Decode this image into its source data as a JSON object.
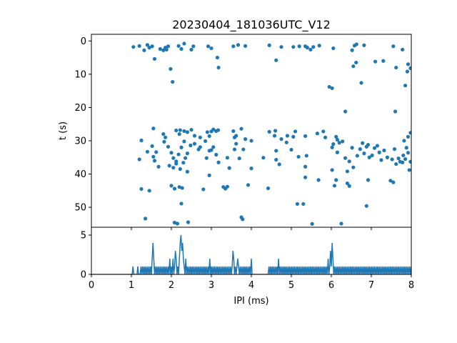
{
  "chart_data": [
    {
      "type": "scatter",
      "title": "20230404_181036UTC_V12",
      "xlabel": "",
      "ylabel": "t (s)",
      "xlim": [
        0,
        8
      ],
      "ylim": [
        56,
        -2
      ],
      "y_inverted": true,
      "x_ticks": [
        0,
        1,
        2,
        3,
        4,
        5,
        6,
        7,
        8
      ],
      "y_ticks": [
        0,
        10,
        20,
        30,
        40,
        50
      ],
      "marker_color": "#1f77b4",
      "grid": false,
      "points": [
        [
          1.05,
          1.8
        ],
        [
          1.2,
          1.5
        ],
        [
          1.32,
          2.8
        ],
        [
          1.4,
          1.2
        ],
        [
          1.45,
          2.0
        ],
        [
          1.52,
          1.6
        ],
        [
          1.58,
          5.4
        ],
        [
          1.72,
          2.4
        ],
        [
          1.8,
          2.8
        ],
        [
          1.85,
          2.0
        ],
        [
          1.88,
          2.6
        ],
        [
          1.92,
          1.6
        ],
        [
          1.98,
          8.4
        ],
        [
          2.03,
          12.3
        ],
        [
          2.18,
          1.5
        ],
        [
          2.25,
          2.4
        ],
        [
          2.32,
          0.8
        ],
        [
          2.5,
          2.6
        ],
        [
          2.55,
          1.6
        ],
        [
          2.92,
          1.6
        ],
        [
          3.0,
          2.2
        ],
        [
          3.15,
          5.0
        ],
        [
          3.18,
          8.0
        ],
        [
          3.55,
          1.6
        ],
        [
          3.67,
          1.2
        ],
        [
          3.85,
          1.5
        ],
        [
          4.45,
          1.3
        ],
        [
          4.62,
          5.8
        ],
        [
          4.75,
          1.8
        ],
        [
          5.05,
          1.8
        ],
        [
          5.2,
          1.6
        ],
        [
          5.35,
          1.6
        ],
        [
          5.4,
          2.0
        ],
        [
          5.48,
          2.6
        ],
        [
          5.55,
          1.8
        ],
        [
          5.7,
          1.4
        ],
        [
          6.05,
          2.2
        ],
        [
          6.52,
          2.8
        ],
        [
          6.58,
          1.4
        ],
        [
          6.63,
          1.0
        ],
        [
          6.55,
          7.6
        ],
        [
          6.62,
          6.5
        ],
        [
          6.75,
          12.6
        ],
        [
          6.82,
          1.3
        ],
        [
          7.1,
          6.2
        ],
        [
          7.3,
          6.0
        ],
        [
          7.55,
          1.6
        ],
        [
          7.62,
          8.0
        ],
        [
          7.78,
          2.6
        ],
        [
          7.85,
          13.4
        ],
        [
          7.9,
          9.2
        ],
        [
          7.92,
          7.0
        ],
        [
          7.98,
          8.2
        ],
        [
          5.95,
          13.8
        ],
        [
          6.02,
          14.2
        ],
        [
          6.35,
          21.2
        ],
        [
          7.6,
          21.2
        ],
        [
          1.55,
          26.3
        ],
        [
          1.8,
          28.0
        ],
        [
          1.85,
          29.0
        ],
        [
          2.12,
          26.9
        ],
        [
          2.2,
          28.0
        ],
        [
          2.22,
          26.8
        ],
        [
          2.32,
          27.1
        ],
        [
          2.4,
          27.4
        ],
        [
          2.5,
          26.7
        ],
        [
          2.58,
          28.5
        ],
        [
          2.72,
          29.0
        ],
        [
          2.9,
          27.4
        ],
        [
          2.95,
          28.6
        ],
        [
          3.0,
          27.2
        ],
        [
          3.05,
          26.6
        ],
        [
          3.12,
          27.1
        ],
        [
          3.17,
          26.8
        ],
        [
          3.55,
          27.1
        ],
        [
          3.58,
          29.0
        ],
        [
          3.62,
          28.5
        ],
        [
          3.75,
          26.4
        ],
        [
          3.85,
          29.5
        ],
        [
          4.0,
          30.0
        ],
        [
          4.45,
          27.3
        ],
        [
          4.58,
          28.5
        ],
        [
          4.6,
          27.0
        ],
        [
          4.75,
          29.5
        ],
        [
          4.9,
          28.5
        ],
        [
          5.1,
          27.2
        ],
        [
          5.35,
          28.6
        ],
        [
          5.65,
          27.8
        ],
        [
          5.8,
          27.2
        ],
        [
          5.85,
          29.0
        ],
        [
          6.05,
          31.0
        ],
        [
          6.12,
          28.8
        ],
        [
          6.15,
          29.7
        ],
        [
          6.2,
          30.6
        ],
        [
          7.92,
          28.8
        ],
        [
          7.98,
          27.6
        ],
        [
          1.25,
          29.9
        ],
        [
          1.4,
          33.3
        ],
        [
          1.2,
          35.6
        ],
        [
          1.52,
          31.6
        ],
        [
          1.55,
          34.8
        ],
        [
          1.58,
          36.0
        ],
        [
          1.62,
          33.4
        ],
        [
          1.68,
          37.8
        ],
        [
          1.82,
          30.3
        ],
        [
          1.92,
          31.8
        ],
        [
          2.0,
          33.6
        ],
        [
          2.05,
          35.2
        ],
        [
          2.12,
          36.2
        ],
        [
          2.18,
          34.1
        ],
        [
          2.25,
          32.0
        ],
        [
          2.32,
          30.2
        ],
        [
          2.35,
          35.2
        ],
        [
          2.4,
          33.8
        ],
        [
          2.48,
          31.4
        ],
        [
          2.58,
          30.9
        ],
        [
          2.68,
          32.6
        ],
        [
          2.72,
          31.9
        ],
        [
          2.85,
          30.1
        ],
        [
          2.88,
          35.2
        ],
        [
          2.95,
          33.0
        ],
        [
          3.0,
          32.8
        ],
        [
          3.05,
          31.9
        ],
        [
          3.12,
          34.2
        ],
        [
          3.18,
          36.5
        ],
        [
          3.3,
          43.9
        ],
        [
          3.4,
          35.1
        ],
        [
          3.45,
          38.2
        ],
        [
          3.58,
          32.6
        ],
        [
          3.62,
          30.9
        ],
        [
          3.7,
          35.3
        ],
        [
          3.8,
          32.6
        ],
        [
          4.3,
          35.1
        ],
        [
          4.62,
          33.0
        ],
        [
          4.7,
          37.1
        ],
        [
          4.88,
          30.5
        ],
        [
          5.0,
          32.7
        ],
        [
          5.05,
          28.8
        ],
        [
          5.18,
          34.8
        ],
        [
          5.38,
          34.5
        ],
        [
          5.35,
          37.8
        ],
        [
          6.02,
          32.0
        ],
        [
          6.15,
          33.5
        ],
        [
          6.28,
          30.2
        ],
        [
          6.35,
          35.2
        ],
        [
          6.45,
          36.2
        ],
        [
          6.52,
          32.1
        ],
        [
          6.65,
          34.5
        ],
        [
          6.72,
          32.5
        ],
        [
          6.78,
          30.7
        ],
        [
          6.82,
          33.8
        ],
        [
          6.88,
          31.8
        ],
        [
          6.92,
          31.2
        ],
        [
          6.95,
          35.0
        ],
        [
          7.02,
          34.4
        ],
        [
          7.08,
          32.2
        ],
        [
          7.15,
          31.5
        ],
        [
          7.2,
          33.5
        ],
        [
          7.25,
          35.8
        ],
        [
          7.32,
          32.9
        ],
        [
          7.4,
          35.0
        ],
        [
          7.52,
          35.6
        ],
        [
          7.58,
          32.5
        ],
        [
          7.62,
          37.0
        ],
        [
          7.68,
          35.3
        ],
        [
          7.72,
          36.3
        ],
        [
          7.8,
          34.4
        ],
        [
          7.85,
          35.5
        ],
        [
          7.88,
          32.1
        ],
        [
          7.92,
          33.6
        ],
        [
          7.95,
          38.8
        ],
        [
          7.98,
          36.3
        ],
        [
          7.78,
          36.5
        ],
        [
          7.82,
          30.0
        ],
        [
          1.95,
          37.5
        ],
        [
          2.05,
          38.1
        ],
        [
          2.12,
          36.9
        ],
        [
          2.22,
          38.5
        ],
        [
          2.3,
          36.6
        ],
        [
          2.4,
          39.3
        ],
        [
          2.95,
          40.4
        ],
        [
          3.4,
          43.8
        ],
        [
          3.92,
          43.3
        ],
        [
          4.0,
          38.3
        ],
        [
          4.42,
          44.3
        ],
        [
          4.62,
          35.7
        ],
        [
          5.35,
          41.0
        ],
        [
          5.68,
          41.8
        ],
        [
          6.02,
          38.8
        ],
        [
          6.08,
          43.5
        ],
        [
          6.12,
          41.8
        ],
        [
          6.4,
          42.8
        ],
        [
          6.4,
          39.2
        ],
        [
          6.45,
          43.6
        ],
        [
          6.55,
          38.0
        ],
        [
          6.92,
          41.8
        ],
        [
          7.48,
          42.0
        ],
        [
          7.55,
          42.5
        ],
        [
          1.25,
          44.5
        ],
        [
          1.45,
          45.0
        ],
        [
          2.0,
          43.5
        ],
        [
          2.08,
          44.4
        ],
        [
          2.2,
          43.9
        ],
        [
          2.27,
          44.2
        ],
        [
          2.25,
          48.9
        ],
        [
          2.8,
          44.6
        ],
        [
          3.35,
          44.4
        ],
        [
          5.15,
          49.0
        ],
        [
          5.3,
          49.0
        ],
        [
          6.88,
          49.6
        ],
        [
          1.35,
          53.4
        ],
        [
          2.08,
          54.6
        ],
        [
          2.15,
          54.9
        ],
        [
          2.42,
          54.5
        ],
        [
          3.75,
          53.0
        ],
        [
          3.78,
          53.6
        ],
        [
          5.52,
          55.0
        ],
        [
          6.25,
          54.9
        ]
      ]
    },
    {
      "type": "line",
      "title": "",
      "xlabel": "IPI (ms)",
      "ylabel": "",
      "xlim": [
        0,
        8
      ],
      "ylim": [
        0,
        6
      ],
      "x_ticks": [
        0,
        1,
        2,
        3,
        4,
        5,
        6,
        7,
        8
      ],
      "x_tick_labels": [
        "0",
        "1",
        "2",
        "3",
        "4",
        "5",
        "6",
        "7",
        "8"
      ],
      "y_ticks": [
        0,
        5
      ],
      "y_tick_labels": [
        "0",
        "5"
      ],
      "line_color": "#1f77b4",
      "bin_width_ms": 0.02,
      "counts_by_bin": {
        "52": 1,
        "58": 1,
        "62": 1,
        "64": 1,
        "66": 1,
        "68": 1,
        "70": 1,
        "72": 1,
        "74": 1,
        "76": 2,
        "77": 4,
        "78": 2,
        "80": 1,
        "82": 1,
        "84": 1,
        "86": 1,
        "88": 1,
        "90": 1,
        "92": 1,
        "94": 1,
        "96": 1,
        "98": 2,
        "100": 1,
        "102": 2,
        "104": 1,
        "105": 3,
        "106": 2,
        "108": 1,
        "110": 2,
        "111": 4,
        "112": 5,
        "113": 3,
        "114": 4,
        "115": 2,
        "116": 1,
        "118": 2,
        "120": 1,
        "122": 1,
        "124": 1,
        "126": 1,
        "128": 1,
        "130": 1,
        "132": 1,
        "134": 1,
        "136": 1,
        "138": 1,
        "140": 1,
        "142": 1,
        "144": 1,
        "146": 1,
        "148": 2,
        "150": 1,
        "152": 1,
        "154": 1,
        "156": 1,
        "158": 1,
        "160": 1,
        "162": 1,
        "164": 1,
        "166": 1,
        "168": 1,
        "170": 1,
        "172": 1,
        "174": 1,
        "176": 1,
        "177": 3,
        "178": 2,
        "180": 1,
        "182": 1,
        "183": 2,
        "184": 1,
        "186": 1,
        "188": 1,
        "190": 1,
        "192": 1,
        "194": 1,
        "196": 1,
        "198": 1,
        "200": 2,
        "222": 1,
        "224": 1,
        "226": 1,
        "228": 1,
        "230": 1,
        "232": 1,
        "234": 2,
        "236": 1,
        "238": 1,
        "240": 1,
        "242": 1,
        "244": 1,
        "246": 1,
        "248": 1,
        "250": 1,
        "252": 1,
        "254": 1,
        "256": 1,
        "258": 1,
        "260": 1,
        "262": 1,
        "264": 1,
        "266": 1,
        "268": 1,
        "270": 1,
        "272": 1,
        "274": 1,
        "276": 1,
        "278": 1,
        "280": 1,
        "282": 1,
        "284": 1,
        "286": 1,
        "288": 1,
        "290": 1,
        "292": 1,
        "294": 1,
        "296": 2,
        "298": 1,
        "299": 3,
        "300": 1,
        "301": 4,
        "302": 2,
        "304": 1,
        "306": 1,
        "308": 1,
        "310": 1,
        "312": 1,
        "314": 1,
        "316": 1,
        "318": 1,
        "320": 1,
        "322": 1,
        "324": 1,
        "326": 1,
        "328": 1,
        "330": 1,
        "332": 1,
        "334": 1,
        "336": 1,
        "338": 1,
        "340": 1,
        "342": 1,
        "344": 1,
        "346": 1,
        "348": 1,
        "350": 1,
        "352": 1,
        "354": 1,
        "356": 1,
        "358": 1,
        "360": 1,
        "362": 1,
        "364": 1,
        "366": 1,
        "368": 1,
        "370": 1,
        "372": 1,
        "374": 1,
        "376": 1,
        "378": 1,
        "380": 1,
        "382": 1,
        "384": 1,
        "386": 1,
        "388": 1,
        "390": 1,
        "392": 1,
        "394": 1,
        "396": 1,
        "398": 1,
        "400": 1
      }
    }
  ]
}
